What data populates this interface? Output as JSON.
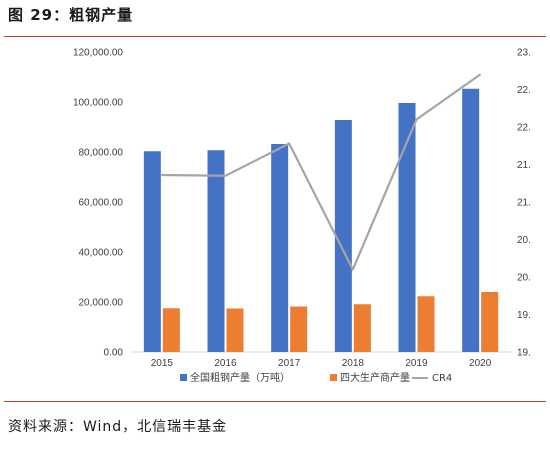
{
  "header": {
    "figure_title": "图 29：粗钢产量"
  },
  "footer": {
    "source": "资料来源：Wind，北信瑞丰基金"
  },
  "colors": {
    "rule": "#c0392b",
    "series1": "#4472c4",
    "series2": "#ed7d31",
    "series3": "#a5a5a5"
  },
  "chart_data": {
    "type": "bar",
    "categories": [
      "2015",
      "2016",
      "2017",
      "2018",
      "2019",
      "2020"
    ],
    "series": [
      {
        "name": "全国粗钢产量（万吨）",
        "kind": "bar",
        "axis": "left",
        "values": [
          80300,
          80700,
          83200,
          92800,
          99600,
          105300
        ]
      },
      {
        "name": "四大生产商产量",
        "kind": "bar",
        "axis": "left",
        "values": [
          17500,
          17400,
          18200,
          19100,
          22300,
          24000
        ]
      },
      {
        "name": "CR4",
        "kind": "line",
        "axis": "right",
        "values": [
          21.36,
          21.35,
          21.78,
          20.1,
          22.1,
          22.7
        ]
      }
    ],
    "left_axis": {
      "ylim": [
        0,
        120000
      ],
      "tick_labels": [
        "0.00",
        "20,000.00",
        "40,000.00",
        "60,000.00",
        "80,000.00",
        "100,000.00",
        "120,000.00"
      ]
    },
    "right_axis": {
      "ylim": [
        19.0,
        23.0
      ],
      "tick_labels": [
        "19.",
        "19.",
        "20.",
        "20.",
        "21.",
        "21.",
        "22.",
        "22.",
        "23."
      ]
    },
    "legend_position": "bottom",
    "grid": false
  }
}
